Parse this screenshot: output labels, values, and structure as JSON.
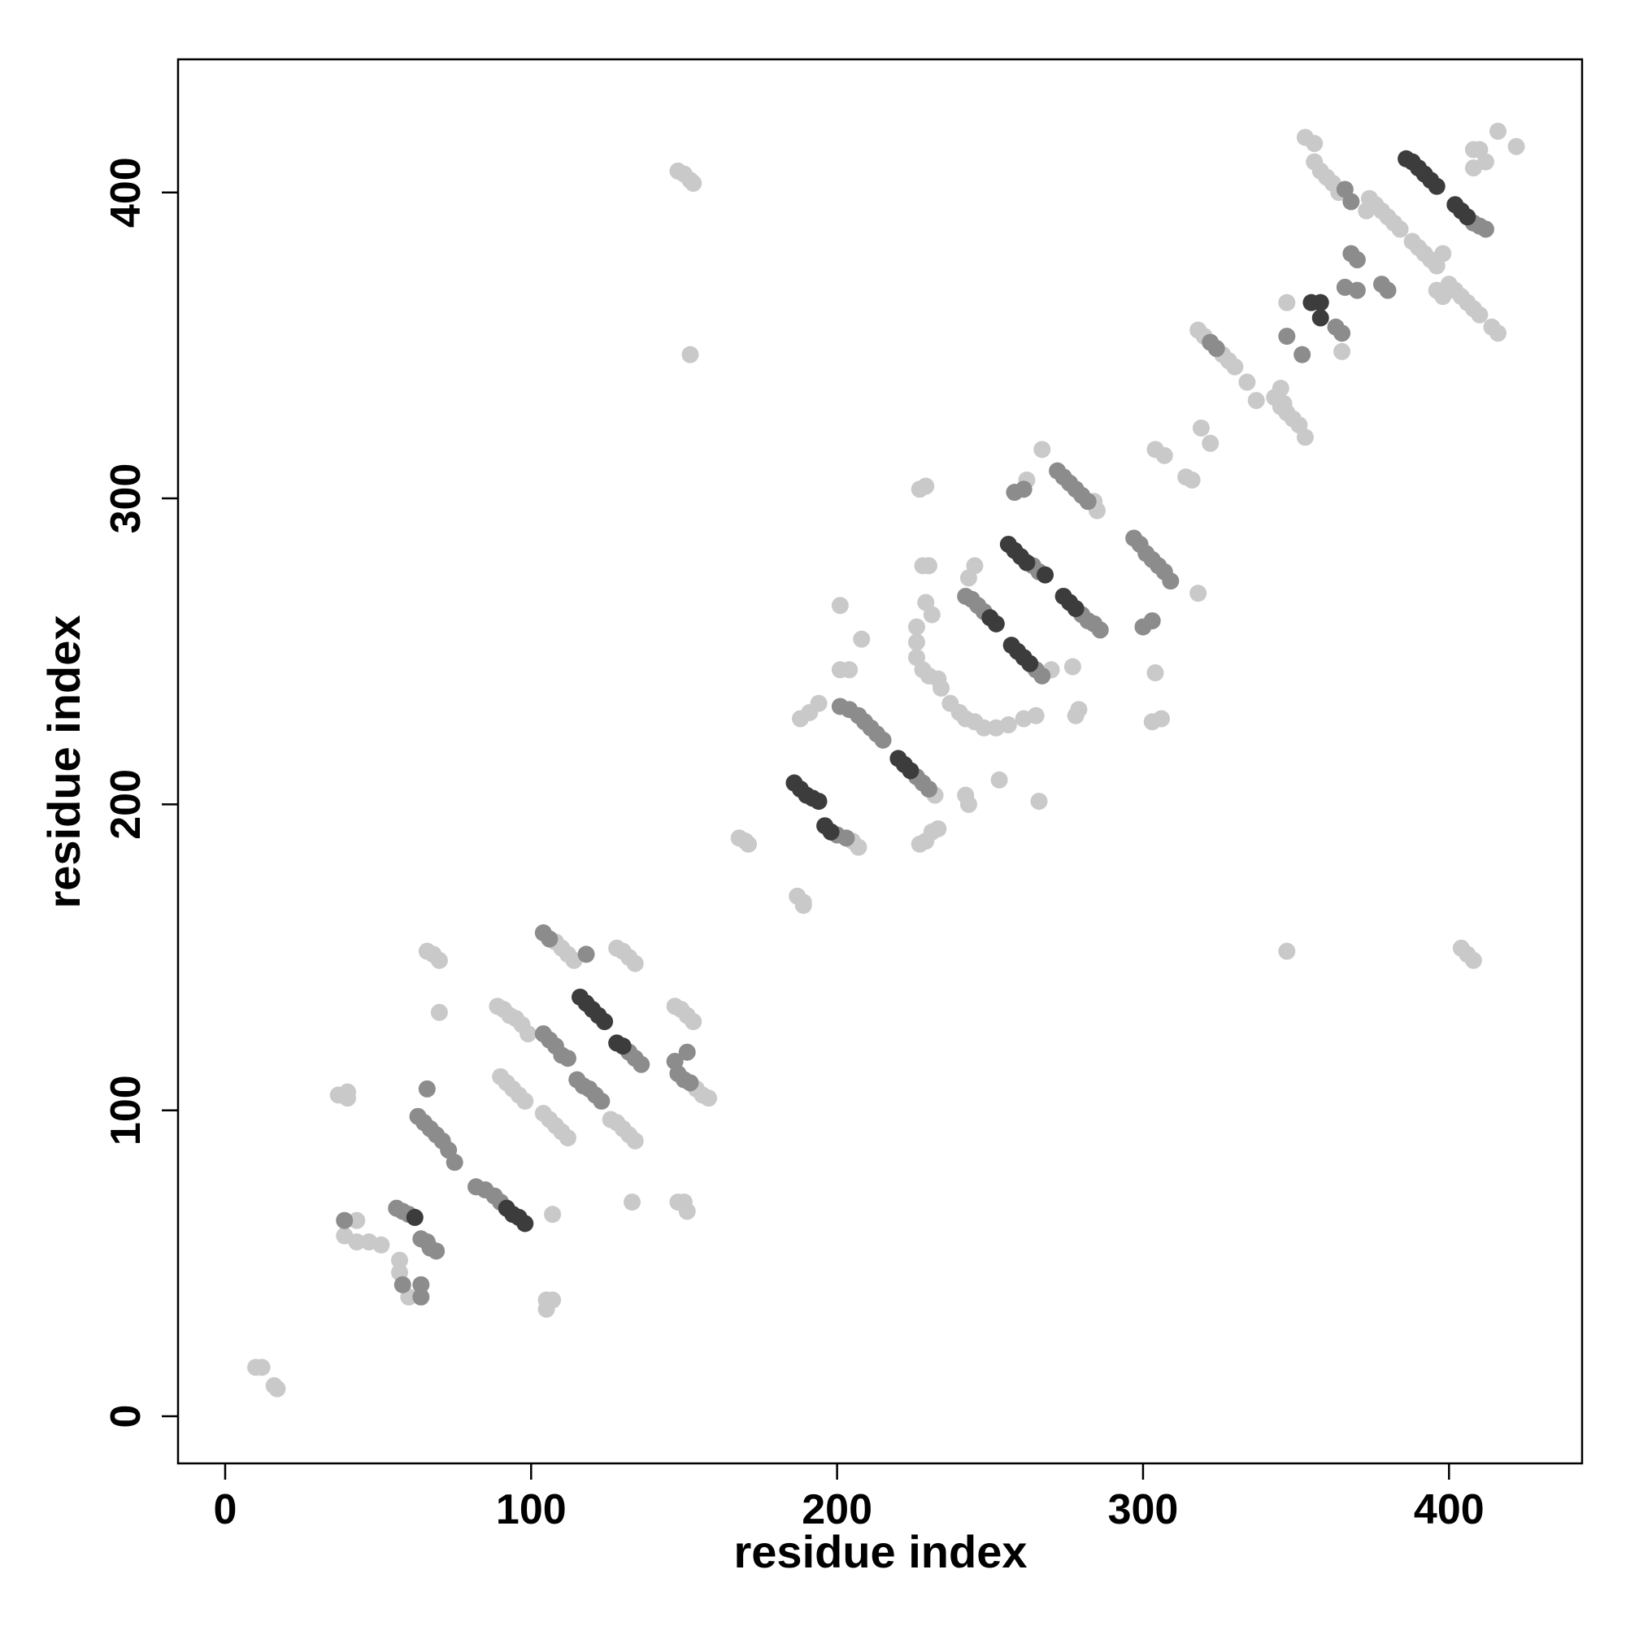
{
  "chart_data": {
    "type": "scatter",
    "xlabel": "residue index",
    "ylabel": "residue index",
    "xlim": [
      -15.4,
      443.5
    ],
    "ylim": [
      -15.4,
      443.5
    ],
    "xticks": [
      0,
      100,
      200,
      300,
      400
    ],
    "yticks": [
      0,
      100,
      200,
      300,
      400
    ],
    "series": [
      {
        "color": "#c9c9c9",
        "x": [
          10,
          12,
          16,
          17,
          37,
          40,
          40,
          43,
          39,
          43,
          47,
          51,
          57,
          57,
          60,
          66,
          68,
          70,
          70,
          89,
          91,
          93,
          95,
          97,
          99,
          90,
          92,
          94,
          96,
          98,
          104,
          106,
          108,
          110,
          112,
          108,
          110,
          112,
          114,
          128,
          130,
          132,
          134,
          126,
          128,
          130,
          132,
          134,
          133,
          105,
          107,
          105,
          107,
          147,
          149,
          151,
          153,
          154,
          156,
          158,
          148,
          150,
          151,
          148,
          150,
          152,
          153,
          152,
          168,
          170,
          171,
          207,
          205,
          187,
          189,
          189,
          188,
          191,
          194,
          201,
          201,
          204,
          208,
          227,
          229,
          231,
          233,
          226,
          226,
          228,
          230,
          233,
          234,
          228,
          230,
          227,
          229,
          229,
          231,
          226,
          232,
          237,
          240,
          242,
          245,
          248,
          252,
          256,
          261,
          265,
          243,
          245,
          242,
          243,
          253,
          266,
          262,
          267,
          284,
          285,
          270,
          277,
          278,
          279,
          304,
          303,
          306,
          318,
          304,
          307,
          314,
          316,
          319,
          322,
          318,
          320,
          326,
          328,
          330,
          334,
          337,
          345,
          346,
          343,
          345,
          347,
          349,
          351,
          353,
          347,
          347,
          365,
          356,
          358,
          360,
          362,
          364,
          353,
          356,
          373,
          374,
          376,
          378,
          380,
          382,
          384,
          388,
          390,
          392,
          394,
          396,
          400,
          402,
          404,
          406,
          408,
          410,
          414,
          416,
          398,
          396,
          398,
          404,
          406,
          408,
          408,
          410,
          408,
          416,
          422,
          412
        ],
        "y": [
          16,
          16,
          10,
          9,
          105,
          106,
          104,
          64,
          59,
          57,
          57,
          56,
          51,
          47,
          39,
          152,
          151,
          149,
          132,
          134,
          133,
          131,
          130,
          128,
          125,
          111,
          109,
          107,
          105,
          103,
          99,
          97,
          95,
          93,
          91,
          155,
          153,
          151,
          149,
          153,
          152,
          150,
          148,
          97,
          96,
          94,
          92,
          90,
          70,
          38,
          38,
          35,
          66,
          134,
          133,
          131,
          129,
          107,
          105,
          104,
          70,
          70,
          67,
          407,
          406,
          404,
          403,
          347,
          189,
          188,
          187,
          186,
          188,
          170,
          168,
          167,
          228,
          230,
          233,
          265,
          244,
          244,
          254,
          187,
          188,
          191,
          192,
          253,
          248,
          244,
          242,
          241,
          238,
          278,
          278,
          303,
          304,
          266,
          262,
          258,
          203,
          233,
          230,
          228,
          227,
          225,
          225,
          226,
          228,
          229,
          274,
          278,
          203,
          200,
          208,
          201,
          306,
          316,
          299,
          296,
          244,
          245,
          229,
          231,
          243,
          227,
          228,
          269,
          316,
          314,
          307,
          306,
          323,
          318,
          355,
          353,
          347,
          345,
          343,
          338,
          332,
          336,
          331,
          333,
          330,
          328,
          326,
          324,
          320,
          152,
          364,
          348,
          410,
          407,
          405,
          403,
          400,
          418,
          416,
          394,
          398,
          396,
          394,
          392,
          390,
          388,
          384,
          382,
          380,
          378,
          376,
          370,
          368,
          366,
          364,
          362,
          360,
          356,
          354,
          380,
          368,
          366,
          153,
          151,
          149,
          414,
          414,
          408,
          420,
          415,
          410
        ]
      },
      {
        "color": "#8c8c8c",
        "x": [
          39,
          56,
          58,
          60,
          58,
          64,
          64,
          64,
          66,
          67,
          69,
          63,
          65,
          67,
          69,
          71,
          73,
          75,
          66,
          82,
          85,
          88,
          90,
          104,
          106,
          108,
          110,
          112,
          104,
          106,
          118,
          115,
          117,
          119,
          121,
          123,
          132,
          134,
          136,
          147,
          151,
          148,
          150,
          152,
          200,
          203,
          201,
          204,
          207,
          209,
          211,
          213,
          215,
          226,
          228,
          230,
          242,
          244,
          246,
          248,
          264,
          266,
          258,
          261,
          265,
          267,
          280,
          282,
          284,
          286,
          272,
          274,
          276,
          278,
          280,
          282,
          297,
          299,
          301,
          303,
          305,
          307,
          309,
          300,
          303,
          322,
          324,
          347,
          352,
          363,
          365,
          366,
          368,
          368,
          370,
          366,
          370,
          378,
          380,
          408,
          410,
          412
        ],
        "y": [
          64,
          68,
          67,
          66,
          43,
          39,
          43,
          58,
          57,
          55,
          54,
          98,
          96,
          94,
          92,
          90,
          87,
          83,
          107,
          75,
          74,
          72,
          70,
          125,
          123,
          121,
          118,
          117,
          158,
          156,
          151,
          110,
          108,
          107,
          105,
          103,
          119,
          117,
          115,
          116,
          119,
          112,
          110,
          109,
          190,
          189,
          232,
          231,
          229,
          227,
          225,
          223,
          221,
          209,
          207,
          205,
          268,
          267,
          265,
          263,
          278,
          276,
          302,
          303,
          244,
          242,
          262,
          260,
          259,
          257,
          309,
          307,
          305,
          303,
          301,
          299,
          287,
          285,
          282,
          280,
          278,
          276,
          273,
          258,
          260,
          351,
          349,
          353,
          347,
          356,
          354,
          401,
          397,
          380,
          378,
          369,
          368,
          370,
          368,
          390,
          389,
          388
        ]
      },
      {
        "color": "#3c3c3c",
        "x": [
          62,
          92,
          94,
          96,
          98,
          116,
          118,
          120,
          122,
          124,
          128,
          130,
          186,
          188,
          190,
          192,
          194,
          196,
          198,
          220,
          222,
          224,
          250,
          252,
          256,
          258,
          260,
          262,
          268,
          257,
          259,
          261,
          263,
          274,
          276,
          278,
          355,
          358,
          358,
          386,
          388,
          390,
          392,
          394,
          396,
          402,
          404,
          406
        ],
        "y": [
          65,
          68,
          66,
          65,
          63,
          137,
          135,
          133,
          131,
          129,
          122,
          121,
          207,
          205,
          203,
          202,
          201,
          193,
          191,
          215,
          213,
          211,
          261,
          259,
          285,
          283,
          281,
          279,
          275,
          252,
          250,
          248,
          246,
          268,
          266,
          264,
          364,
          364,
          359,
          411,
          410,
          408,
          406,
          404,
          402,
          396,
          394,
          392
        ]
      }
    ]
  }
}
